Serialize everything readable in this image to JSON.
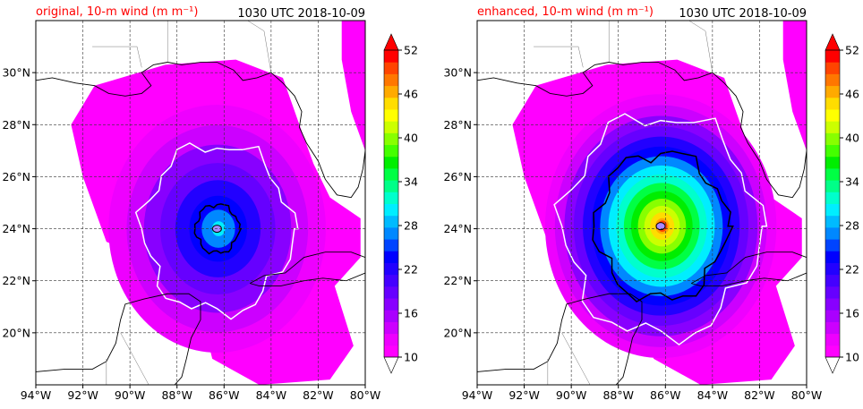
{
  "chart_data": [
    {
      "type": "heatmap",
      "title": "original, 10-m wind (m m⁻¹)",
      "title_color": "#ff0000",
      "time_label": "1030 UTC 2018-10-09",
      "xlim": [
        -94,
        -80
      ],
      "ylim": [
        18,
        32
      ],
      "x_ticks": [
        -94,
        -92,
        -90,
        -88,
        -86,
        -84,
        -82,
        -80
      ],
      "x_tick_labels": [
        "94°W",
        "92°W",
        "90°W",
        "88°W",
        "86°W",
        "84°W",
        "82°W",
        "80°W"
      ],
      "y_ticks": [
        20,
        22,
        24,
        26,
        28,
        30
      ],
      "y_tick_labels": [
        "20°N",
        "22°N",
        "24°N",
        "26°N",
        "28°N",
        "30°N"
      ],
      "grid": true,
      "storm_center": [
        -86.3,
        24.0
      ],
      "max_wind": 30,
      "contours": [
        {
          "color": "#ffffff",
          "level": 17
        },
        {
          "color": "#000000",
          "level": 26
        }
      ],
      "colorbar": {
        "ticks": [
          10,
          16,
          22,
          28,
          34,
          40,
          46,
          52
        ],
        "range": [
          10,
          52
        ],
        "extend": "both",
        "colors": [
          "#ff00ff",
          "#ee00ff",
          "#cc00ff",
          "#aa00ff",
          "#8800ff",
          "#6600ff",
          "#4400ff",
          "#2200ff",
          "#0000ff",
          "#0044ff",
          "#0088ff",
          "#00bbff",
          "#00eeff",
          "#00ffcc",
          "#00ff88",
          "#00ff44",
          "#00ee00",
          "#44ff00",
          "#88ff00",
          "#ccff00",
          "#ffff00",
          "#ffdd00",
          "#ffaa00",
          "#ff7700",
          "#ff4400",
          "#ff0000"
        ]
      }
    },
    {
      "type": "heatmap",
      "title": "enhanced, 10-m wind (m m⁻¹)",
      "title_color": "#ff0000",
      "time_label": "1030 UTC 2018-10-09",
      "xlim": [
        -94,
        -80
      ],
      "ylim": [
        18,
        32
      ],
      "x_ticks": [
        -94,
        -92,
        -90,
        -88,
        -86,
        -84,
        -82,
        -80
      ],
      "x_tick_labels": [
        "94°W",
        "92°W",
        "90°W",
        "88°W",
        "86°W",
        "84°W",
        "82°W",
        "80°W"
      ],
      "y_ticks": [
        20,
        22,
        24,
        26,
        28,
        30
      ],
      "y_tick_labels": [
        "20°N",
        "22°N",
        "24°N",
        "26°N",
        "28°N",
        "30°N"
      ],
      "grid": true,
      "storm_center": [
        -86.2,
        24.1
      ],
      "max_wind": 50,
      "contours": [
        {
          "color": "#ffffff",
          "level": 17
        },
        {
          "color": "#000000",
          "level": 26
        }
      ],
      "colorbar": {
        "ticks": [
          10,
          16,
          22,
          28,
          34,
          40,
          46,
          52
        ],
        "range": [
          10,
          52
        ],
        "extend": "both",
        "colors": [
          "#ff00ff",
          "#ee00ff",
          "#cc00ff",
          "#aa00ff",
          "#8800ff",
          "#6600ff",
          "#4400ff",
          "#2200ff",
          "#0000ff",
          "#0044ff",
          "#0088ff",
          "#00bbff",
          "#00eeff",
          "#00ffcc",
          "#00ff88",
          "#00ff44",
          "#00ee00",
          "#44ff00",
          "#88ff00",
          "#ccff00",
          "#ffff00",
          "#ffdd00",
          "#ffaa00",
          "#ff7700",
          "#ff4400",
          "#ff0000"
        ]
      }
    }
  ]
}
